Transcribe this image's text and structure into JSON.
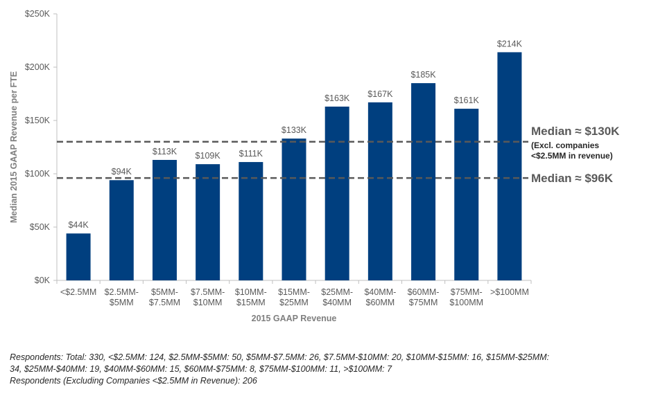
{
  "chart_data": {
    "type": "bar",
    "categories": [
      [
        "<$2.5MM"
      ],
      [
        "$2.5MM-",
        "$5MM"
      ],
      [
        "$5MM-",
        "$7.5MM"
      ],
      [
        "$7.5MM-",
        "$10MM"
      ],
      [
        "$10MM-",
        "$15MM"
      ],
      [
        "$15MM-",
        "$25MM"
      ],
      [
        "$25MM-",
        "$40MM"
      ],
      [
        "$40MM-",
        "$60MM"
      ],
      [
        "$60MM-",
        "$75MM"
      ],
      [
        "$75MM-",
        "$100MM"
      ],
      [
        ">$100MM"
      ]
    ],
    "values": [
      44,
      94,
      113,
      109,
      111,
      133,
      163,
      167,
      185,
      161,
      214
    ],
    "data_labels": [
      "$44K",
      "$94K",
      "$113K",
      "$109K",
      "$111K",
      "$133K",
      "$163K",
      "$167K",
      "$185K",
      "$161K",
      "$214K"
    ],
    "xlabel": "2015 GAAP Revenue",
    "ylabel": "Median 2015 GAAP Revenue per FTE",
    "ylim": [
      0,
      250
    ],
    "yticks": [
      0,
      50,
      100,
      150,
      200,
      250
    ],
    "ytick_labels": [
      "$0K",
      "$50K",
      "$100K",
      "$150K",
      "$200K",
      "$250K"
    ],
    "bar_color": "#003f7f",
    "reference_lines": [
      {
        "value": 130,
        "label": "Median ≈ $130K",
        "note": [
          "(Excl. companies",
          "<$2.5MM in revenue)"
        ]
      },
      {
        "value": 96,
        "label": "Median ≈ $96K",
        "note": []
      }
    ],
    "grid": false
  },
  "footnote": {
    "lines": [
      "Respondents: Total: 330, <$2.5MM: 124, $2.5MM-$5MM: 50, $5MM-$7.5MM: 26, $7.5MM-$10MM: 20, $10MM-$15MM: 16, $15MM-$25MM:",
      "34, $25MM-$40MM: 19, $40MM-$60MM: 15, $60MM-$75MM: 8, $75MM-$100MM: 11, >$100MM: 7",
      "Respondents (Excluding Companies <$2.5MM in Revenue): 206"
    ]
  }
}
